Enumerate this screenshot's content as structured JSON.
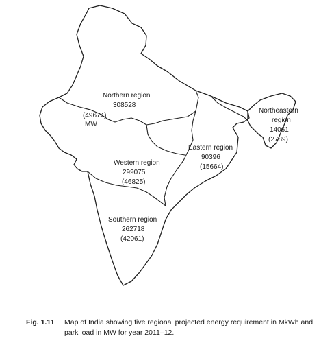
{
  "regions": {
    "northern": {
      "name": "Northern region",
      "energy": "308528",
      "load": "(49674)",
      "unit": "MW"
    },
    "northeastern": {
      "name_line1": "Northeastern",
      "name_line2": "region",
      "energy": "14061",
      "load": "(2789)"
    },
    "eastern": {
      "name": "Eastern region",
      "energy": "90396",
      "load": "(15664)"
    },
    "western": {
      "name": "Western region",
      "energy": "299075",
      "load": "(46825)"
    },
    "southern": {
      "name": "Southern region",
      "energy": "262718",
      "load": "(42061)"
    }
  },
  "caption": {
    "number": "Fig. 1.11",
    "text": "Map of India showing five regional projected energy requirement in MkWh and park load in MW for year 2011–12."
  }
}
